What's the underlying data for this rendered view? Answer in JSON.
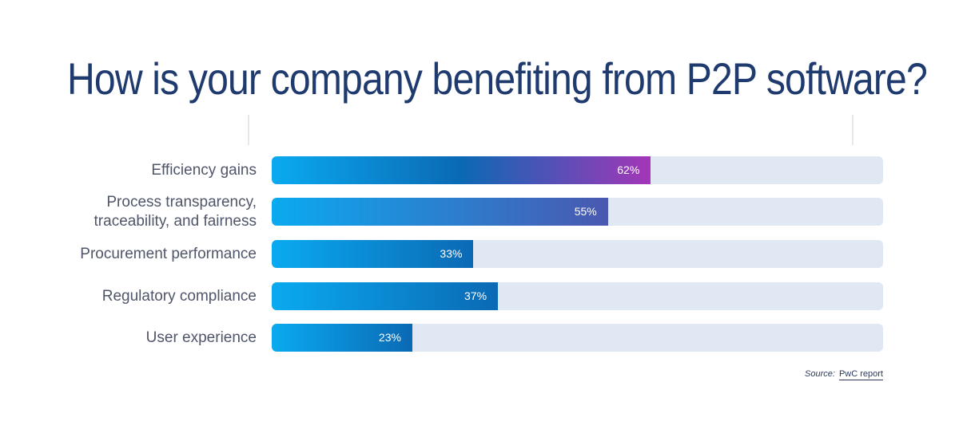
{
  "chart_data": {
    "type": "bar",
    "orientation": "horizontal",
    "title": "How is your company benefiting from P2P software?",
    "categories": [
      "Efficiency gains",
      "Process transparency, traceability, and fairness",
      "Procurement performance",
      "Regulatory compliance",
      "User experience"
    ],
    "label_lines": [
      [
        "Efficiency gains"
      ],
      [
        "Process transparency,",
        "traceability, and fairness"
      ],
      [
        "Procurement performance"
      ],
      [
        "Regulatory compliance"
      ],
      [
        "User experience"
      ]
    ],
    "values": [
      62,
      55,
      33,
      37,
      23
    ],
    "value_labels": [
      "62%",
      "55%",
      "33%",
      "37%",
      "23%"
    ],
    "xlim": [
      0,
      100
    ],
    "grid": false,
    "legend": "none"
  },
  "colors": {
    "title": "#1f3a6e",
    "track": "#dfe8f3",
    "fill_start": "#0aaaf0",
    "fill_mid": "#0b69b4",
    "fill_end_purple": "#a436b8",
    "fill_end_indigo": "#4a58b0"
  },
  "source": {
    "label": "Source:",
    "text": "PwC report"
  }
}
